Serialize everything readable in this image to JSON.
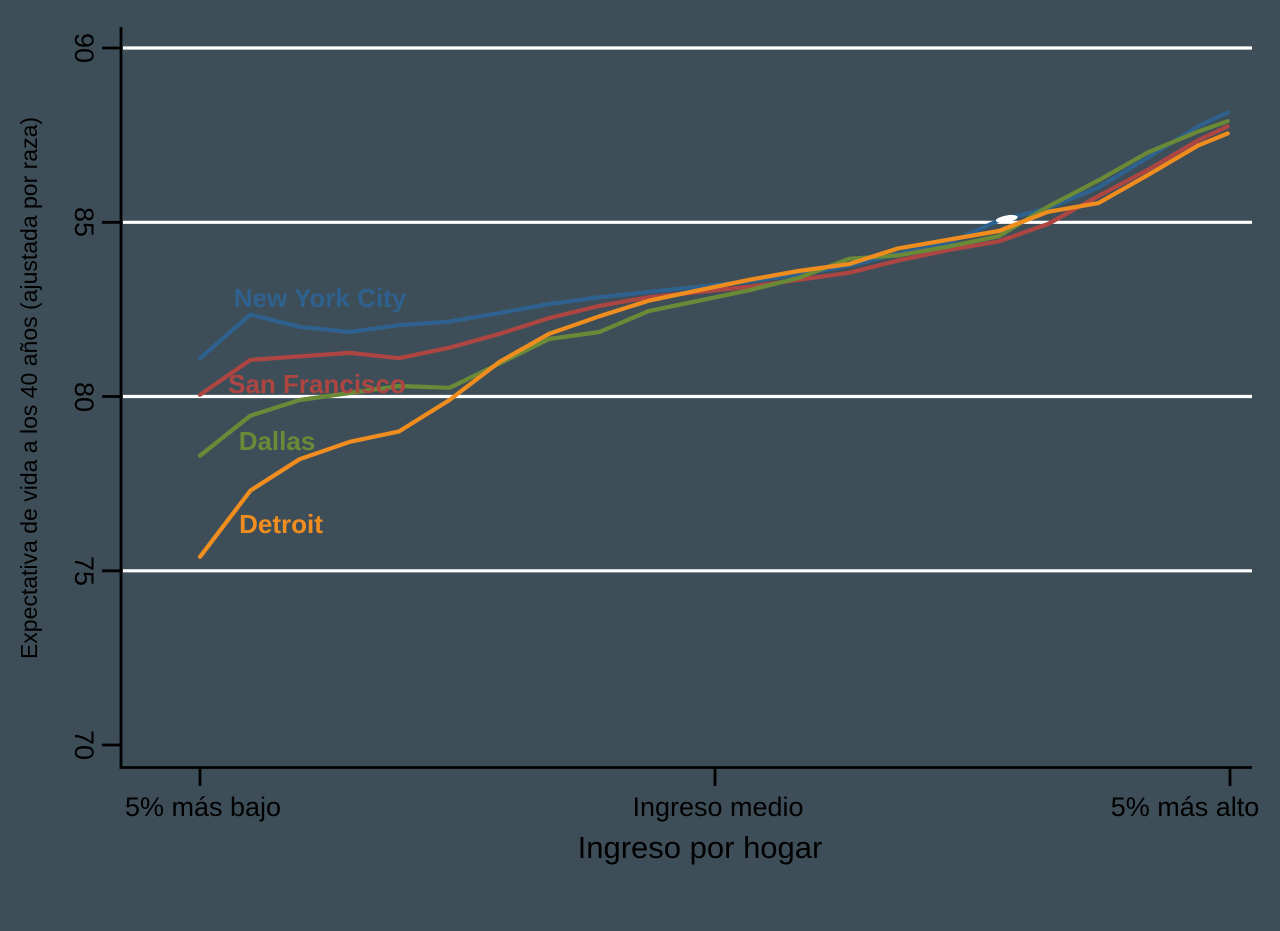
{
  "colors": {
    "background": "#3e4e58",
    "axis": "#000000",
    "gridline": "#ffffff",
    "text": "#000000"
  },
  "chart_data": {
    "type": "line",
    "title": "",
    "xlabel": "Ingreso por hogar",
    "ylabel": "Expectativa de vida a los 40 años (ajustada por raza)",
    "x_axis_unit": "percentil de ingreso",
    "x": [
      5,
      9.4,
      13.7,
      18.1,
      22.4,
      26.8,
      31.2,
      35.5,
      39.9,
      44.2,
      48.6,
      53.0,
      57.3,
      61.7,
      66.0,
      70.4,
      74.8,
      79.1,
      83.5,
      87.8,
      92.2,
      94.8
    ],
    "xlim": [
      5,
      95
    ],
    "ylim": [
      69.3,
      90.6
    ],
    "grid": true,
    "legend_position": "inline-labels",
    "x_ticks": [
      {
        "label": "5% más bajo",
        "percentile": 5,
        "label_dx": 0
      },
      {
        "label": "Ingreso medio",
        "percentile": 50,
        "label_dx": 3
      },
      {
        "label": "5% más alto",
        "percentile": 95,
        "label_dx": -45
      }
    ],
    "y_ticks": [
      {
        "label": "90",
        "value": 90,
        "gridline": true
      },
      {
        "label": "85",
        "value": 85,
        "gridline": true
      },
      {
        "label": "80",
        "value": 80,
        "gridline": true
      },
      {
        "label": "75",
        "value": 75,
        "gridline": true
      },
      {
        "label": "70",
        "value": 70,
        "gridline": false
      }
    ],
    "series": [
      {
        "name": "New York City",
        "color": "#2f618e",
        "values": [
          81.1,
          82.35,
          82.0,
          81.85,
          82.05,
          82.15,
          82.4,
          82.65,
          82.85,
          83.0,
          83.15,
          83.3,
          83.5,
          83.75,
          84.1,
          84.4,
          85.05,
          85.4,
          86.0,
          86.85,
          87.75,
          88.15
        ]
      },
      {
        "name": "San Francisco",
        "color": "#ad4642",
        "values": [
          80.05,
          81.05,
          81.15,
          81.25,
          81.1,
          81.4,
          81.8,
          82.25,
          82.6,
          82.85,
          83.0,
          83.15,
          83.35,
          83.55,
          83.9,
          84.2,
          84.45,
          84.95,
          85.75,
          86.5,
          87.35,
          87.75
        ]
      },
      {
        "name": "Dallas",
        "color": "#6a8a38",
        "values": [
          78.3,
          79.45,
          79.9,
          80.1,
          80.3,
          80.25,
          80.95,
          81.65,
          81.85,
          82.45,
          82.75,
          83.05,
          83.4,
          83.95,
          84.05,
          84.3,
          84.6,
          85.45,
          86.2,
          87.0,
          87.6,
          87.9
        ]
      },
      {
        "name": "Detroit",
        "color": "#f08d1f",
        "values": [
          75.4,
          77.3,
          78.2,
          78.7,
          79.0,
          79.9,
          81.0,
          81.8,
          82.3,
          82.75,
          83.05,
          83.35,
          83.6,
          83.8,
          84.25,
          84.5,
          84.75,
          85.3,
          85.55,
          86.35,
          87.2,
          87.55
        ]
      }
    ],
    "gridline_gap_marker": {
      "series": "New York City",
      "x_percentile": 75.5,
      "value": 85.1
    }
  }
}
